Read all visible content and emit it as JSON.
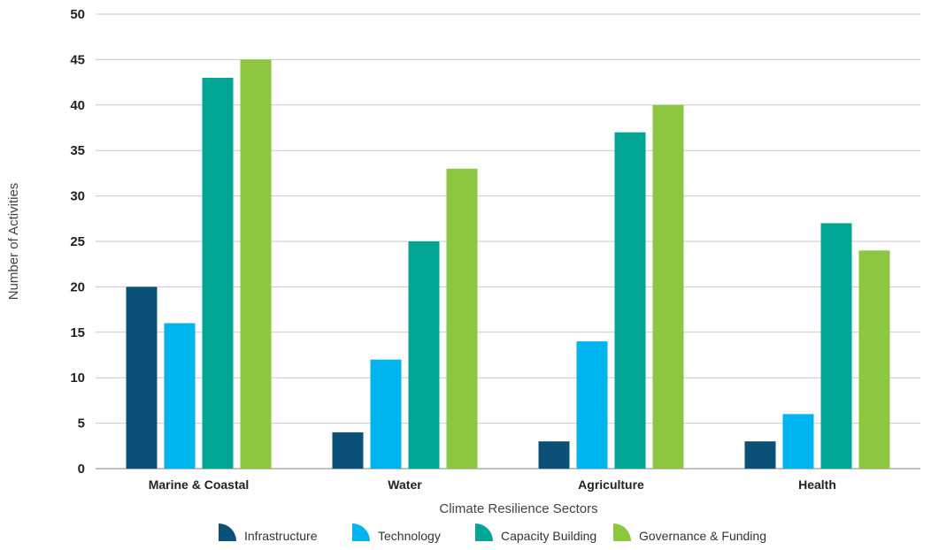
{
  "chart_data": {
    "type": "bar",
    "title": "",
    "xlabel": "Climate Resilience Sectors",
    "ylabel": "Number of Activities",
    "ylim": [
      0,
      50
    ],
    "yticks": [
      0,
      5,
      10,
      15,
      20,
      25,
      30,
      35,
      40,
      45,
      50
    ],
    "grid": true,
    "legend_position": "bottom",
    "categories": [
      "Marine & Coastal",
      "Water",
      "Agriculture",
      "Health"
    ],
    "series": [
      {
        "name": "Infrastructure",
        "color": "#0b5177",
        "values": [
          20,
          4,
          3,
          3
        ]
      },
      {
        "name": "Technology",
        "color": "#00b5ef",
        "values": [
          16,
          12,
          14,
          6
        ]
      },
      {
        "name": "Capacity Building",
        "color": "#00a693",
        "values": [
          43,
          25,
          37,
          27
        ]
      },
      {
        "name": "Governance & Funding",
        "color": "#8dc63f",
        "values": [
          45,
          33,
          40,
          24
        ]
      }
    ]
  }
}
